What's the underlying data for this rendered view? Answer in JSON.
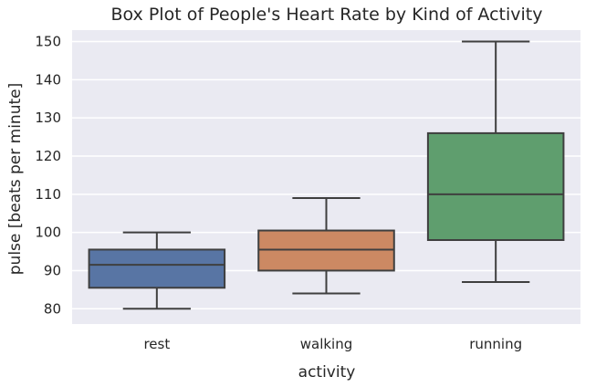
{
  "chart_data": {
    "type": "box",
    "title": "Box Plot of People's Heart Rate by Kind of Activity",
    "xlabel": "activity",
    "ylabel": "pulse [beats per minute]",
    "ylim": [
      76,
      153
    ],
    "yticks": [
      80,
      90,
      100,
      110,
      120,
      130,
      140,
      150
    ],
    "grid": true,
    "categories": [
      "rest",
      "walking",
      "running"
    ],
    "boxes": [
      {
        "category": "rest",
        "whislo": 80,
        "q1": 85.5,
        "med": 91.5,
        "q3": 95.5,
        "whishi": 100,
        "color": "#5875a4"
      },
      {
        "category": "walking",
        "whislo": 84,
        "q1": 90,
        "med": 95.5,
        "q3": 100.5,
        "whishi": 109,
        "color": "#cc8963"
      },
      {
        "category": "running",
        "whislo": 87,
        "q1": 98,
        "med": 110,
        "q3": 126,
        "whishi": 150,
        "color": "#5f9e6e"
      }
    ],
    "background_color": "#eaeaf2",
    "line_color": "#3f3f3f"
  }
}
